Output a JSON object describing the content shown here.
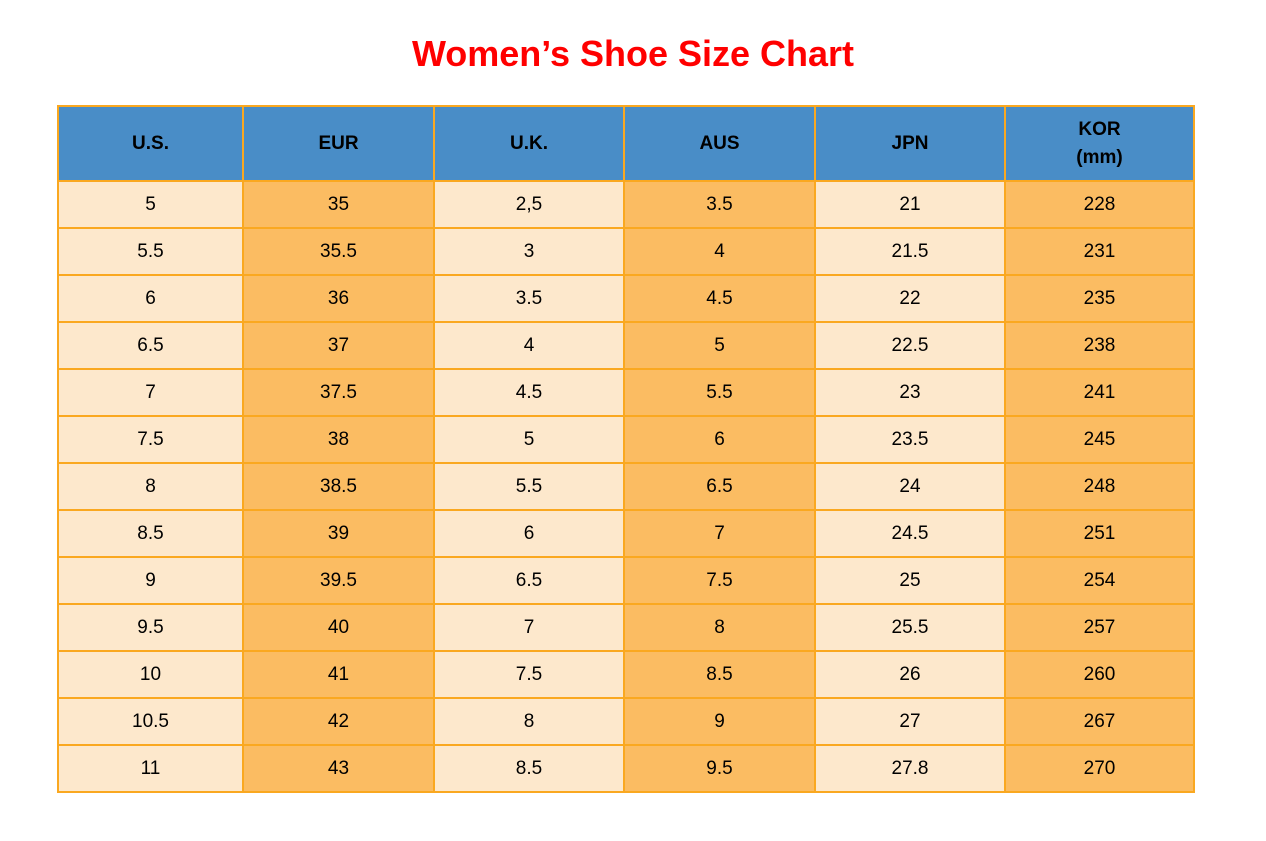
{
  "title": {
    "text": "Women’s Shoe Size Chart"
  },
  "kor_header": {
    "line1": "KOR",
    "line2": "(mm)"
  },
  "chart_data": {
    "type": "table",
    "title": "Women’s Shoe Size Chart",
    "columns": [
      "U.S.",
      "EUR",
      "U.K.",
      "AUS",
      "JPN",
      "KOR (mm)"
    ],
    "rows": [
      [
        "5",
        "35",
        "2,5",
        "3.5",
        "21",
        "228"
      ],
      [
        "5.5",
        "35.5",
        "3",
        "4",
        "21.5",
        "231"
      ],
      [
        "6",
        "36",
        "3.5",
        "4.5",
        "22",
        "235"
      ],
      [
        "6.5",
        "37",
        "4",
        "5",
        "22.5",
        "238"
      ],
      [
        "7",
        "37.5",
        "4.5",
        "5.5",
        "23",
        "241"
      ],
      [
        "7.5",
        "38",
        "5",
        "6",
        "23.5",
        "245"
      ],
      [
        "8",
        "38.5",
        "5.5",
        "6.5",
        "24",
        "248"
      ],
      [
        "8.5",
        "39",
        "6",
        "7",
        "24.5",
        "251"
      ],
      [
        "9",
        "39.5",
        "6.5",
        "7.5",
        "25",
        "254"
      ],
      [
        "9.5",
        "40",
        "7",
        "8",
        "25.5",
        "257"
      ],
      [
        "10",
        "41",
        "7.5",
        "8.5",
        "26",
        "260"
      ],
      [
        "10.5",
        "42",
        "8",
        "9",
        "27",
        "267"
      ],
      [
        "11",
        "43",
        "8.5",
        "9.5",
        "27.8",
        "270"
      ]
    ],
    "layout_hints": {
      "header_position": "top",
      "grid": true,
      "column_fill_pattern": [
        "cream",
        "orange",
        "cream",
        "orange",
        "cream",
        "orange"
      ]
    }
  },
  "colors": {
    "title_color": "#ff0000",
    "header_bg": "#498dc7",
    "col_cream": "#fde8cc",
    "col_orange": "#fbbc62",
    "border_color": "#faa820",
    "text_color": "#000000"
  }
}
